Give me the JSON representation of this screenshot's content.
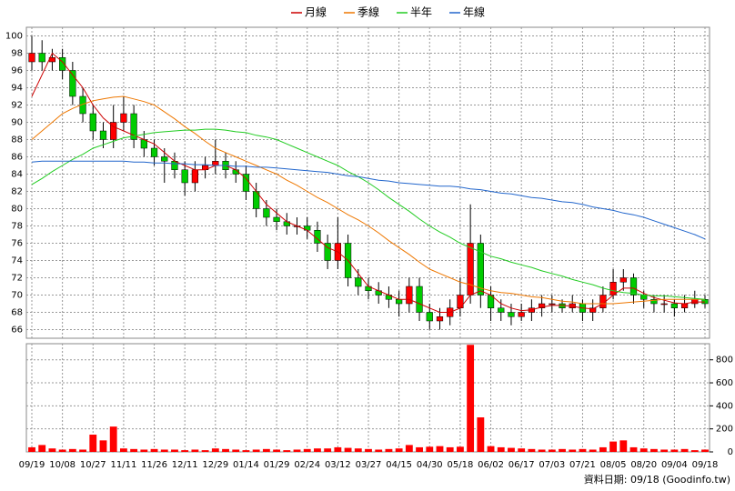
{
  "chart_data": {
    "type": "candlestick",
    "legend": "top",
    "grid": true,
    "ylim": [
      65,
      101
    ],
    "yticks": [
      66,
      68,
      70,
      72,
      74,
      76,
      78,
      80,
      82,
      84,
      86,
      88,
      90,
      92,
      94,
      96,
      98,
      100
    ],
    "y2lim": [
      0,
      940
    ],
    "y2ticks": [
      0,
      200,
      400,
      600,
      800
    ],
    "xlim": [
      0,
      66
    ],
    "xticks": [
      {
        "value": 0,
        "label": "09/19"
      },
      {
        "value": 3,
        "label": "10/08"
      },
      {
        "value": 6,
        "label": "10/27"
      },
      {
        "value": 9,
        "label": "11/11"
      },
      {
        "value": 12,
        "label": "11/26"
      },
      {
        "value": 15,
        "label": "12/11"
      },
      {
        "value": 18,
        "label": "12/29"
      },
      {
        "value": 21,
        "label": "01/14"
      },
      {
        "value": 24,
        "label": "01/29"
      },
      {
        "value": 27,
        "label": "02/24"
      },
      {
        "value": 30,
        "label": "03/12"
      },
      {
        "value": 33,
        "label": "03/27"
      },
      {
        "value": 36,
        "label": "04/15"
      },
      {
        "value": 39,
        "label": "04/30"
      },
      {
        "value": 42,
        "label": "05/18"
      },
      {
        "value": 45,
        "label": "06/02"
      },
      {
        "value": 48,
        "label": "06/17"
      },
      {
        "value": 51,
        "label": "07/03"
      },
      {
        "value": 54,
        "label": "07/21"
      },
      {
        "value": 57,
        "label": "08/05"
      },
      {
        "value": 60,
        "label": "08/20"
      },
      {
        "value": 63,
        "label": "09/04"
      },
      {
        "value": 66,
        "label": "09/18"
      }
    ],
    "up_color": "#ff0000",
    "down_color": "#00cc00",
    "open": [
      97,
      98,
      97,
      97.5,
      96,
      93,
      91,
      89,
      88,
      90,
      91,
      88,
      87,
      86,
      85.5,
      84.5,
      83,
      84.5,
      85,
      85.5,
      84.5,
      84,
      82,
      80,
      79,
      78.5,
      78,
      78,
      77.5,
      76,
      74,
      76,
      72,
      71,
      70.5,
      70,
      69.5,
      69,
      71,
      68,
      67,
      67.5,
      68.5,
      70,
      76,
      70,
      68.5,
      68,
      67.5,
      68,
      68.5,
      69,
      69,
      68.5,
      69,
      68,
      68.5,
      70,
      71.5,
      72,
      70,
      69.5,
      69,
      69,
      68.5,
      69,
      69.5
    ],
    "high": [
      100,
      99.5,
      98.5,
      98.5,
      97,
      94,
      92,
      90,
      92,
      93,
      92,
      89,
      88,
      87,
      86.5,
      85.5,
      85.5,
      86,
      88,
      86.5,
      85.5,
      85,
      83,
      81,
      80,
      79.5,
      79,
      79,
      78.5,
      77,
      79,
      77,
      73,
      72,
      71.5,
      71,
      70.5,
      72,
      72,
      69,
      68.5,
      69.5,
      72,
      80.5,
      77,
      71,
      69.5,
      69,
      69,
      69.5,
      70,
      70,
      69.5,
      70,
      69.5,
      69.5,
      71,
      73,
      73,
      72.5,
      70.5,
      70,
      70,
      69.5,
      70,
      70.5,
      70
    ],
    "low": [
      96,
      96,
      96,
      95,
      92,
      90,
      88,
      87,
      87,
      89,
      87,
      86,
      85,
      83,
      83.5,
      81.5,
      82,
      83.5,
      84,
      83.5,
      83,
      81,
      79,
      78,
      77.5,
      77,
      77,
      76.5,
      75,
      73,
      73,
      71,
      70,
      69.5,
      69,
      68.5,
      67.5,
      68,
      67,
      66,
      66,
      66.5,
      67.5,
      69,
      68.5,
      67,
      67,
      66.5,
      67,
      67,
      67.5,
      68,
      68,
      68,
      67,
      67,
      68,
      69.5,
      70.5,
      69,
      68.5,
      68,
      68,
      67.5,
      68,
      68.5,
      68.5
    ],
    "close": [
      98,
      97,
      97.5,
      96,
      93,
      91,
      89,
      88,
      90,
      91,
      88,
      87,
      86,
      85.5,
      84.5,
      83,
      84.5,
      85,
      85.5,
      84.5,
      84,
      82,
      80,
      79,
      78.5,
      78,
      78,
      77.5,
      76,
      74,
      76,
      72,
      71,
      70.5,
      70,
      69.5,
      69,
      71,
      68,
      67,
      67.5,
      68.5,
      70,
      76,
      70,
      68.5,
      68,
      67.5,
      68,
      68.5,
      69,
      69,
      68.5,
      69,
      68,
      68.5,
      70,
      71.5,
      72,
      70,
      69.5,
      69,
      69,
      68.5,
      69,
      69.5,
      69
    ],
    "series": [
      {
        "name": "月線",
        "color": "#cc0000",
        "values": [
          93,
          95.5,
          98,
          97,
          95.5,
          94,
          92,
          90.5,
          89.5,
          89,
          88.5,
          88,
          87.5,
          86.5,
          85.5,
          85,
          84.5,
          84.5,
          85,
          85,
          84.5,
          83.5,
          82,
          80.5,
          79.5,
          78.5,
          78,
          77.5,
          76.5,
          75.5,
          75,
          74,
          72.5,
          71,
          70.5,
          70,
          69.5,
          69.5,
          69,
          68.5,
          68,
          68,
          68.5,
          70,
          70.5,
          70,
          69,
          68.5,
          68.2,
          68.3,
          68.6,
          68.8,
          68.8,
          68.7,
          68.5,
          68.4,
          69,
          70,
          70.8,
          70.8,
          70.2,
          69.7,
          69.4,
          69.1,
          69,
          69.2,
          69.2
        ]
      },
      {
        "name": "季線",
        "color": "#ee7700",
        "values": [
          88,
          89,
          90,
          91,
          91.6,
          92.1,
          92.5,
          92.7,
          92.9,
          93,
          92.7,
          92.4,
          92,
          91.2,
          90.4,
          89.5,
          88.7,
          87.8,
          87,
          86.5,
          86,
          85.5,
          85,
          84.5,
          84,
          83.3,
          82.7,
          82,
          81.3,
          80.7,
          80,
          79.3,
          78.7,
          78,
          77.2,
          76.3,
          75.5,
          74.7,
          73.8,
          73,
          72.5,
          72,
          71.5,
          71.2,
          70.8,
          70.5,
          70.3,
          70.2,
          70,
          69.8,
          69.7,
          69.5,
          69.3,
          69.2,
          69,
          69,
          69,
          69,
          69.1,
          69.2,
          69.3,
          69.4,
          69.5,
          69.5,
          69.5,
          69.5,
          69.5
        ]
      },
      {
        "name": "半年",
        "color": "#22cc22",
        "values": [
          82.8,
          83.5,
          84.3,
          85,
          85.7,
          86.3,
          87,
          87.4,
          87.8,
          88.2,
          88.4,
          88.6,
          88.8,
          88.9,
          89,
          89.1,
          89.1,
          89.2,
          89.2,
          89.1,
          88.9,
          88.8,
          88.5,
          88.3,
          88,
          87.5,
          87,
          86.5,
          86,
          85.5,
          85,
          84.3,
          83.7,
          83,
          82.2,
          81.3,
          80.5,
          79.7,
          78.8,
          78,
          77.3,
          76.7,
          76,
          75.5,
          75,
          74.5,
          74.2,
          73.8,
          73.5,
          73.2,
          72.8,
          72.5,
          72.2,
          71.8,
          71.5,
          71.2,
          70.8,
          70.5,
          70.3,
          70.2,
          70,
          69.9,
          69.9,
          69.8,
          69.7,
          69.6,
          69.5
        ]
      },
      {
        "name": "年線",
        "color": "#2266cc",
        "values": [
          85.4,
          85.5,
          85.5,
          85.5,
          85.5,
          85.5,
          85.5,
          85.5,
          85.5,
          85.5,
          85.4,
          85.4,
          85.3,
          85.3,
          85.2,
          85.2,
          85.1,
          85.1,
          85,
          85,
          84.9,
          84.9,
          84.8,
          84.8,
          84.7,
          84.6,
          84.5,
          84.4,
          84.3,
          84.2,
          84,
          83.8,
          83.7,
          83.5,
          83.3,
          83.2,
          83,
          82.9,
          82.8,
          82.7,
          82.6,
          82.6,
          82.5,
          82.3,
          82.2,
          82,
          81.8,
          81.7,
          81.5,
          81.3,
          81.2,
          81,
          80.8,
          80.7,
          80.5,
          80.2,
          80,
          79.8,
          79.5,
          79.3,
          79,
          78.6,
          78.2,
          77.8,
          77.4,
          77,
          76.5
        ]
      }
    ],
    "volume": {
      "axis": "y2",
      "color": "#ff0000",
      "values": [
        40,
        60,
        30,
        20,
        25,
        20,
        150,
        100,
        220,
        30,
        25,
        20,
        25,
        20,
        20,
        15,
        20,
        15,
        30,
        25,
        20,
        15,
        20,
        25,
        20,
        15,
        20,
        25,
        30,
        30,
        40,
        35,
        30,
        25,
        20,
        25,
        30,
        60,
        40,
        45,
        50,
        40,
        45,
        930,
        300,
        50,
        40,
        35,
        30,
        25,
        20,
        20,
        25,
        20,
        25,
        20,
        40,
        90,
        100,
        40,
        30,
        25,
        20,
        20,
        25,
        15,
        20
      ]
    },
    "source": "資料日期: 09/18 (Goodinfo.tw)"
  }
}
